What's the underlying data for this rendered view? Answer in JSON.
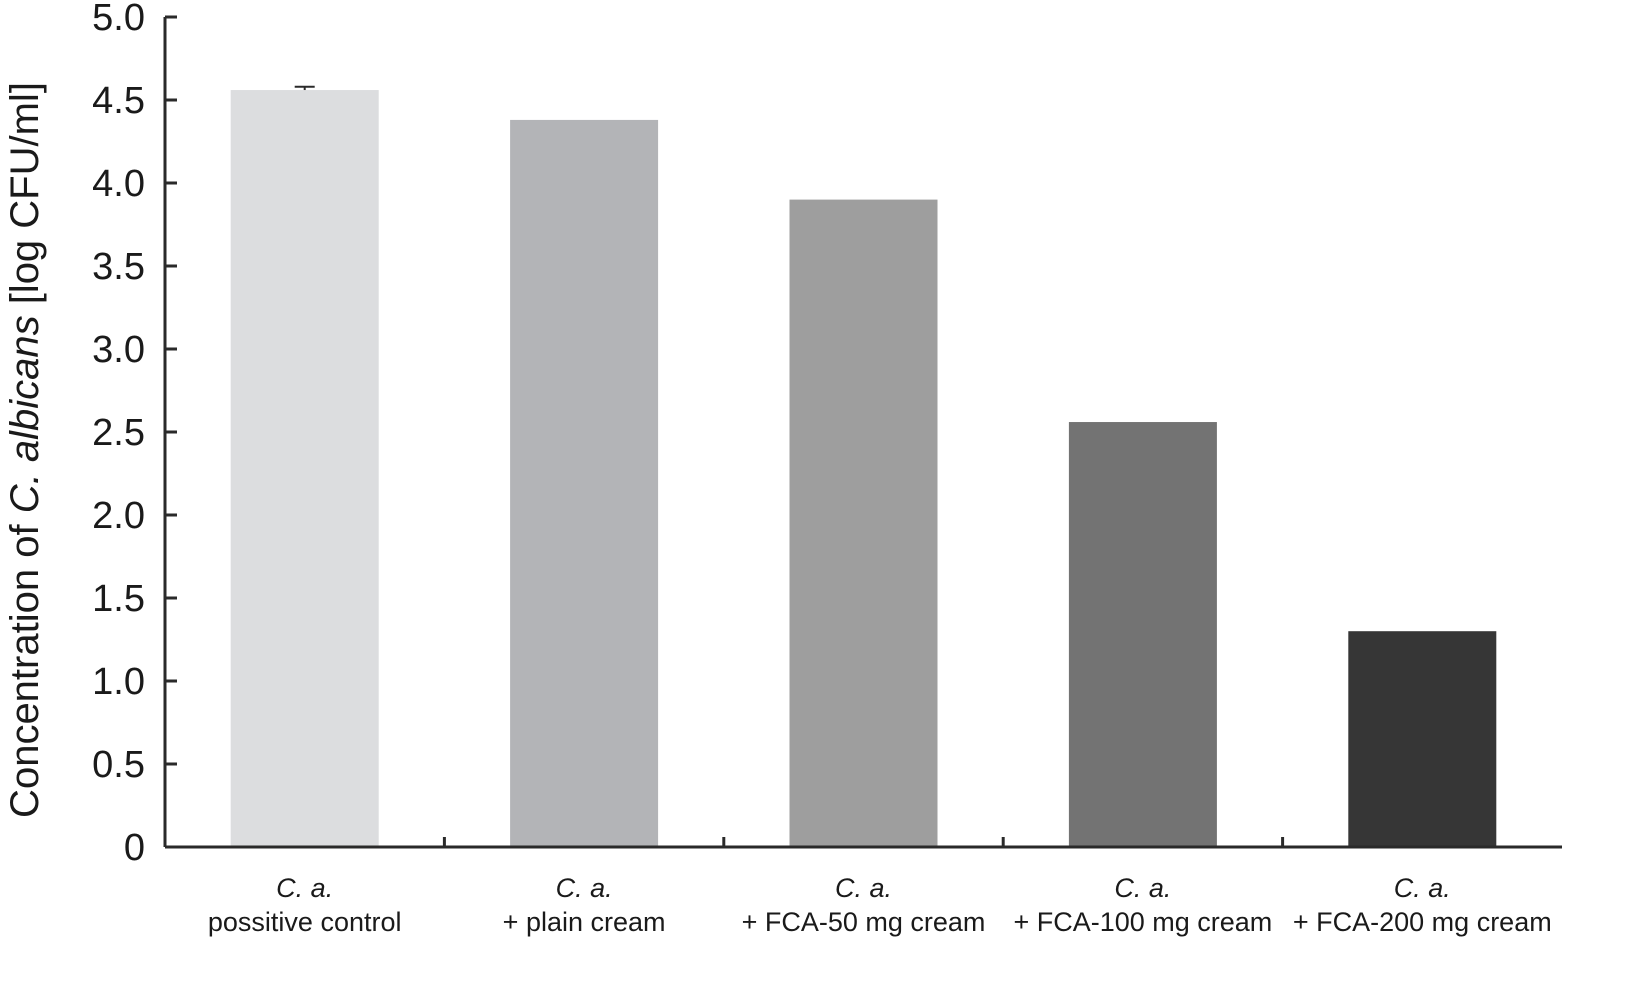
{
  "chart_data": {
    "type": "bar",
    "title": "",
    "xlabel": "",
    "ylabel": {
      "prefix": "Concentration of ",
      "italic": "C. albicans",
      "suffix": " [log CFU/ml]"
    },
    "ylim": [
      0,
      5.0
    ],
    "yticks": [
      "0",
      "0.5",
      "1.0",
      "1.5",
      "2.0",
      "2.5",
      "3.0",
      "3.5",
      "4.0",
      "4.5",
      "5.0"
    ],
    "categories": [
      {
        "line1": "C. a.",
        "line2": "possitive control"
      },
      {
        "line1": "C. a.",
        "line2": "+ plain cream"
      },
      {
        "line1": "C. a.",
        "line2": "+ FCA-50 mg cream"
      },
      {
        "line1": "C. a.",
        "line2": "+ FCA-100 mg cream"
      },
      {
        "line1": "C. a.",
        "line2": "+ FCA-200 mg cream"
      }
    ],
    "values": [
      4.56,
      4.38,
      3.9,
      2.56,
      1.3
    ],
    "errors": [
      0.02,
      0,
      0,
      0,
      0
    ],
    "colors": [
      "#dcdddf",
      "#b3b4b7",
      "#9e9e9e",
      "#737373",
      "#363636"
    ],
    "grid": false,
    "legend": "none"
  }
}
